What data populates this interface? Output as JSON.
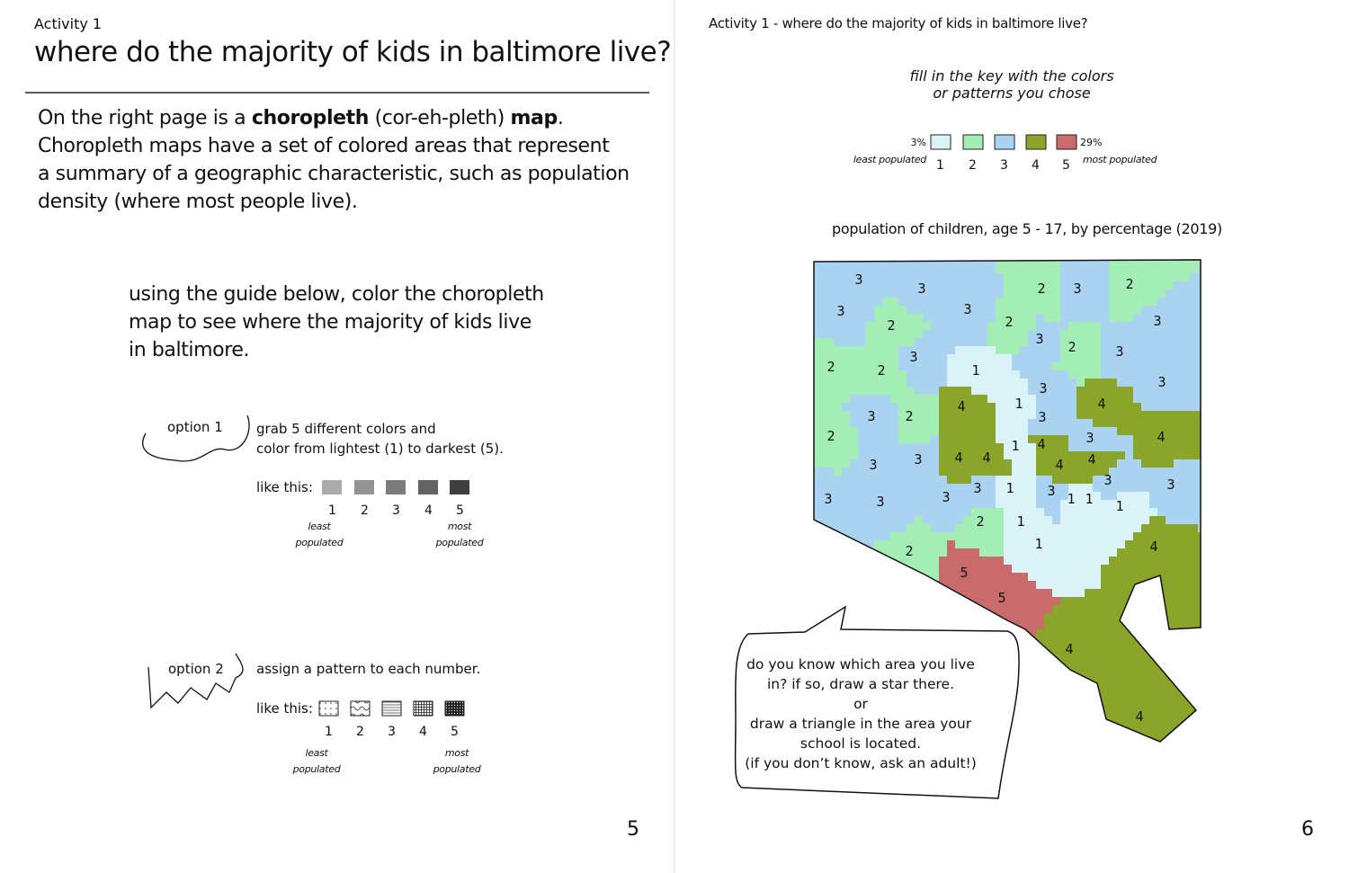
{
  "left_page": {
    "activity": "Activity 1",
    "title": "where do the majority of kids in baltimore live?",
    "intro_lines": [
      [
        "On the right page is a ",
        "choropleth",
        " (cor-eh-pleth) ",
        "map",
        "."
      ],
      [
        "Choropleth maps have a set of colored areas that represent"
      ],
      [
        "a summary of a geographic characteristic, such as population"
      ],
      [
        "density (where most people live)."
      ]
    ],
    "instruction_lines": [
      "using the guide below, color the choropleth",
      "map to see where the majority of kids live",
      "in baltimore."
    ],
    "option1": {
      "label": "option 1",
      "text_lines": [
        "grab 5 different colors and",
        "color from lightest (1) to darkest (5)."
      ],
      "like": "like this:",
      "swatches": [
        {
          "number": "1",
          "color": "#ababab"
        },
        {
          "number": "2",
          "color": "#939393"
        },
        {
          "number": "3",
          "color": "#7c7c7c"
        },
        {
          "number": "4",
          "color": "#646464"
        },
        {
          "number": "5",
          "color": "#3f3f3f"
        }
      ],
      "least": [
        "least",
        "populated"
      ],
      "most": [
        "most",
        "populated"
      ]
    },
    "option2": {
      "label": "option 2",
      "text_lines": [
        "assign a pattern to each number."
      ],
      "like": "like this:",
      "swatches": [
        {
          "number": "1",
          "pattern": "dots"
        },
        {
          "number": "2",
          "pattern": "waves"
        },
        {
          "number": "3",
          "pattern": "lines"
        },
        {
          "number": "4",
          "pattern": "grid"
        },
        {
          "number": "5",
          "pattern": "dense"
        }
      ],
      "least": [
        "least",
        "populated"
      ],
      "most": [
        "most",
        "populated"
      ]
    },
    "page_number": "5"
  },
  "right_page": {
    "header": "Activity 1 - where do the majority of kids in baltimore live?",
    "key_instruction": [
      "fill in the key with the colors",
      "or patterns you chose"
    ],
    "key": {
      "low": "3%",
      "high": "29%",
      "least": "least populated",
      "most": "most populated",
      "items": [
        {
          "number": "1",
          "color": "#d9f3f7"
        },
        {
          "number": "2",
          "color": "#a2eeb5"
        },
        {
          "number": "3",
          "color": "#a9d3f1"
        },
        {
          "number": "4",
          "color": "#8ba52b"
        },
        {
          "number": "5",
          "color": "#c96b6b"
        }
      ]
    },
    "map": {
      "title": "population of children, age 5 - 17, by percentage (2019)",
      "region_labels": [
        "3",
        "3",
        "3",
        "2",
        "3",
        "2",
        "3",
        "2",
        "2",
        "3",
        "2",
        "3",
        "3",
        "3",
        "2",
        "2",
        "1",
        "3",
        "3",
        "1",
        "4",
        "4",
        "3",
        "3",
        "2",
        "2",
        "4",
        "3",
        "1",
        "4",
        "3",
        "3",
        "4",
        "4",
        "4",
        "4",
        "3",
        "3",
        "3",
        "1",
        "3",
        "1",
        "1",
        "1",
        "3",
        "3",
        "3",
        "2",
        "1",
        "2",
        "1",
        "4",
        "5",
        "5",
        "4",
        "4"
      ]
    },
    "bubble_lines": [
      "do you know which area you live",
      "in? if so, draw a star there.",
      "or",
      "draw a triangle in the area your",
      "school is located.",
      "(if you don’t know, ask an adult!)"
    ],
    "page_number": "6"
  }
}
